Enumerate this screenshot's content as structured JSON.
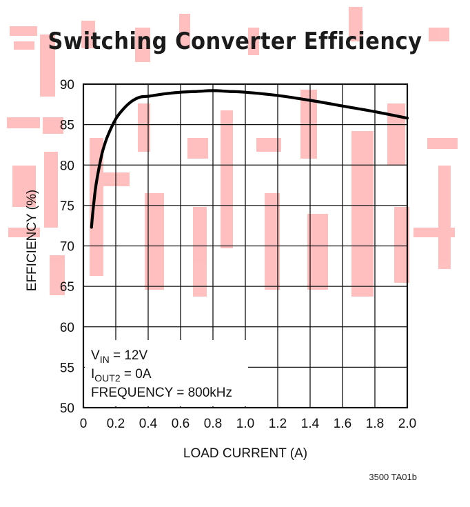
{
  "chart_data": {
    "type": "line",
    "title": "Switching Converter Efficiency",
    "xlabel": "LOAD CURRENT (A)",
    "ylabel": "EFFICIENCY (%)",
    "xlim": [
      0,
      2.0
    ],
    "ylim": [
      50,
      90
    ],
    "grid": true,
    "x_ticks": [
      "0",
      "0.2",
      "0.4",
      "0.6",
      "0.8",
      "1.0",
      "1.2",
      "1.4",
      "1.6",
      "1.8",
      "2.0"
    ],
    "y_ticks": [
      "50",
      "55",
      "60",
      "65",
      "70",
      "75",
      "80",
      "85",
      "90"
    ],
    "annotations": [
      {
        "main": "V",
        "sub": "IN",
        "rest": " = 12V"
      },
      {
        "main": "I",
        "sub": "OUT2",
        "rest": " = 0A"
      },
      {
        "main": "FREQUENCY = 800kHz",
        "sub": "",
        "rest": ""
      }
    ],
    "series": [
      {
        "x": [
          0.05,
          0.06,
          0.07,
          0.08,
          0.1,
          0.12,
          0.15,
          0.2,
          0.25,
          0.3,
          0.35,
          0.4,
          0.5,
          0.6,
          0.7,
          0.8,
          0.9,
          1.0,
          1.2,
          1.4,
          1.6,
          1.8,
          2.0
        ],
        "y": [
          72.3,
          74.5,
          76.3,
          77.8,
          80.0,
          81.8,
          83.6,
          85.7,
          87.0,
          87.9,
          88.4,
          88.5,
          88.8,
          89.0,
          89.1,
          89.2,
          89.1,
          89.0,
          88.6,
          88.0,
          87.3,
          86.6,
          85.8
        ]
      }
    ],
    "figure_id": "3500 TA01b"
  }
}
